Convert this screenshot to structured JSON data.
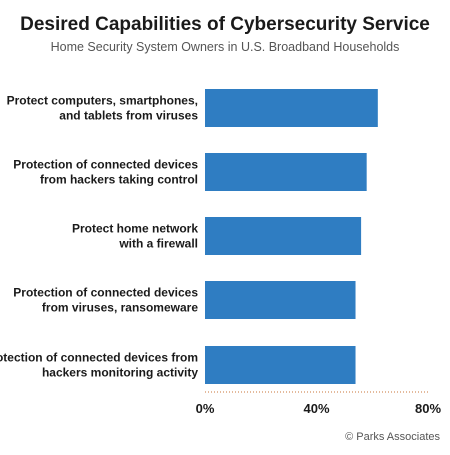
{
  "chart_data": {
    "type": "bar",
    "orientation": "horizontal",
    "title": "Desired Capabilities of Cybersecurity Service",
    "subtitle": "Home Security System Owners in U.S. Broadband Households",
    "categories": [
      [
        "Protect computers, smartphones,",
        "and tablets from viruses"
      ],
      [
        "Protection of connected devices",
        "from hackers taking control"
      ],
      [
        "Protect home network",
        "with a firewall"
      ],
      [
        "Protection of connected devices",
        "from viruses, ransomeware"
      ],
      [
        "Protection of connected devices from",
        "hackers monitoring activity"
      ]
    ],
    "values": [
      62,
      58,
      56,
      54,
      54
    ],
    "xlim": [
      0,
      80
    ],
    "ticks": [
      0,
      40,
      80
    ],
    "tick_labels": [
      "0%",
      "40%",
      "80%"
    ],
    "bar_color": "#2f7dc2",
    "grid": false,
    "legend": "none"
  },
  "footer": {
    "source": "© Parks Associates"
  },
  "colors": {
    "axis": "#c8763a",
    "text": "#1a1a1a",
    "subtitle": "#555555"
  }
}
